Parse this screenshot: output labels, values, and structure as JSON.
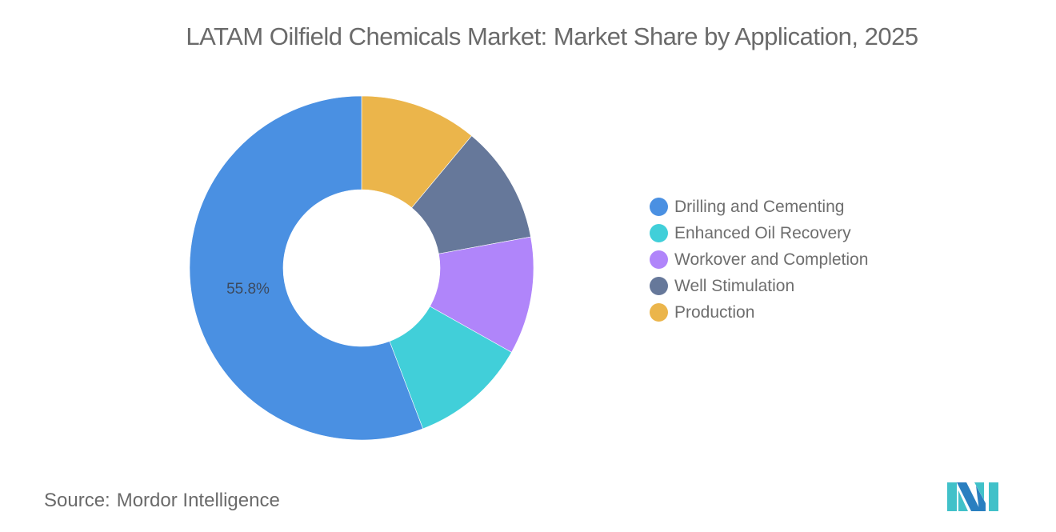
{
  "title": "LATAM Oilfield Chemicals Market: Market Share by Application, 2025",
  "legend": [
    {
      "label": "Drilling and Cementing",
      "color": "#4a90e2"
    },
    {
      "label": "Enhanced Oil Recovery",
      "color": "#41cfd9"
    },
    {
      "label": "Workover and Completion",
      "color": "#b085fa"
    },
    {
      "label": "Well Stimulation",
      "color": "#66789a"
    },
    {
      "label": "Production",
      "color": "#ebb54b"
    }
  ],
  "slice_label": "55.8%",
  "source": {
    "key": "Source:",
    "value": "Mordor Intelligence"
  },
  "chart_data": {
    "type": "pie",
    "subtype": "donut",
    "title": "LATAM Oilfield Chemicals Market: Market Share by Application, 2025",
    "categories": [
      "Drilling and Cementing",
      "Enhanced Oil Recovery",
      "Workover and Completion",
      "Well Stimulation",
      "Production"
    ],
    "values": [
      55.8,
      11.05,
      11.05,
      11.05,
      11.05
    ],
    "colors": [
      "#4a90e2",
      "#41cfd9",
      "#b085fa",
      "#66789a",
      "#ebb54b"
    ],
    "data_labels": {
      "Drilling and Cementing": "55.8%"
    },
    "legend_position": "right",
    "start_angle_deg": 0,
    "direction": "counterclockwise-from-top for first series (Production drawn clockwise from 12 o'clock)"
  }
}
